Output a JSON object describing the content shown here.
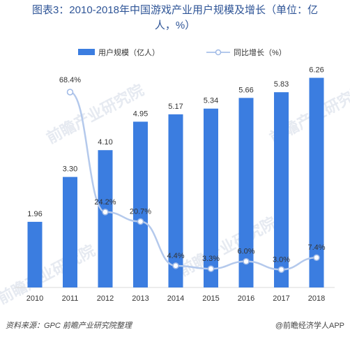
{
  "title_line1": "图表3：2010-2018年中国游戏产业用户规模及增长（单位：亿",
  "title_line2": "人，%）",
  "source": "资料来源：GPC 前瞻产业研究院整理",
  "brand": "@前瞻经济学人APP",
  "watermark": "前瞻产业研究院",
  "colors": {
    "bar": "#3b7de0",
    "line": "#b4c9ec",
    "marker_fill": "#ffffff",
    "marker_stroke": "#9fb9e6"
  },
  "chart_data": {
    "type": "bar",
    "categories": [
      "2010",
      "2011",
      "2012",
      "2013",
      "2014",
      "2015",
      "2016",
      "2017",
      "2018"
    ],
    "series": [
      {
        "name": "用户规模（亿人）",
        "type": "bar",
        "values": [
          1.96,
          3.3,
          4.1,
          4.95,
          5.17,
          5.34,
          5.66,
          5.83,
          6.26
        ],
        "labels": [
          "1.96",
          "3.30",
          "4.10",
          "4.95",
          "5.17",
          "5.34",
          "5.66",
          "5.83",
          "6.26"
        ]
      },
      {
        "name": "同比增长（%）",
        "type": "line",
        "values": [
          null,
          68.4,
          24.2,
          20.7,
          4.4,
          3.3,
          6.0,
          3.0,
          7.4
        ],
        "labels": [
          "",
          "68.4%",
          "24.2%",
          "20.7%",
          "4.4%",
          "3.3%",
          "6.0%",
          "3.0%",
          "7.4%"
        ]
      }
    ],
    "legend_position": "top-center",
    "grid": false
  }
}
